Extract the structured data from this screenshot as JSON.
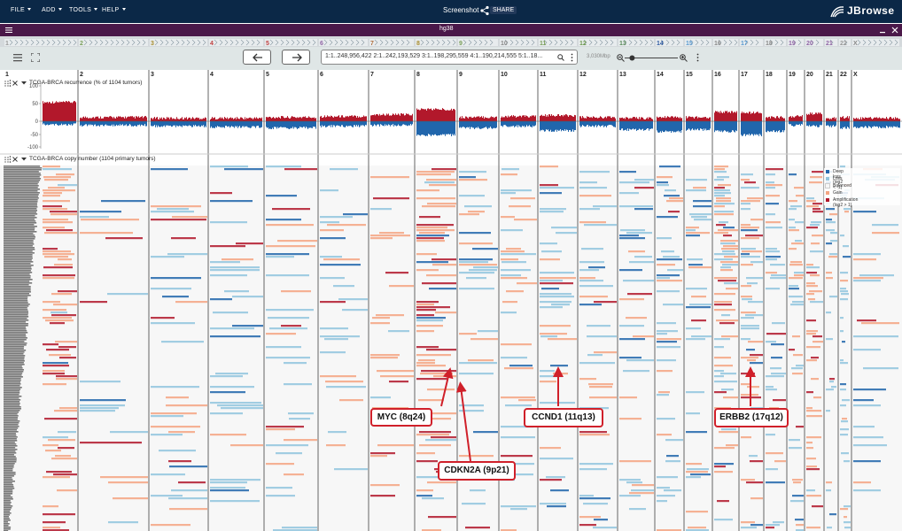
{
  "menu": {
    "items": [
      {
        "label": "FILE"
      },
      {
        "label": "ADD"
      },
      {
        "label": "TOOLS"
      },
      {
        "label": "HELP"
      }
    ]
  },
  "header": {
    "title": "Screenshot",
    "share_label": "SHARE",
    "logo_text": "JBrowse"
  },
  "view": {
    "title": "hg38"
  },
  "location": {
    "text": "1:1..248,956,422 2:1..242,193,529 3:1..198,295,559 4:1..190,214,555 5:1..18...",
    "bp": "3,030Mbp",
    "zoom_fraction": 0.1
  },
  "chromosomes": [
    "1",
    "2",
    "3",
    "4",
    "5",
    "6",
    "7",
    "8",
    "9",
    "10",
    "11",
    "12",
    "13",
    "14",
    "15",
    "16",
    "17",
    "18",
    "19",
    "20",
    "21",
    "22",
    "X"
  ],
  "chrom_colors": [
    "#999999",
    "#7ba05b",
    "#a88d2f",
    "#c04040",
    "#c04040",
    "#9166a6",
    "#b07040",
    "#a88d2f",
    "#7ba05b",
    "#888888",
    "#7ba05b",
    "#6e9a50",
    "#5a8a5a",
    "#2f5aa0",
    "#5a9ad0",
    "#888888",
    "#5a9ad0",
    "#888888",
    "#9166a6",
    "#9166a6",
    "#9166a6",
    "#999999",
    "#888888"
  ],
  "tracks": [
    {
      "label": "TCGA-BRCA recurrence (% of 1104 tumors)",
      "axis": [
        "100",
        "50",
        "0",
        "-50",
        "-100"
      ]
    },
    {
      "label": "TCGA-BRCA copy number (1104 primary tumors)"
    }
  ],
  "legend": [
    {
      "label": "Deep loss (log2 < -1)",
      "color": "#2166ac"
    },
    {
      "label": "Loss",
      "color": "#92c5de"
    },
    {
      "label": "Balanced",
      "color": "#f7f7f7"
    },
    {
      "label": "Gain",
      "color": "#f4a582"
    },
    {
      "label": "Amplification (log2 > 1)",
      "color": "#b2182b"
    }
  ],
  "annotations": [
    {
      "label": "MYC (8q24)"
    },
    {
      "label": "CDKN2A (9p21)"
    },
    {
      "label": "CCND1 (11q13)"
    },
    {
      "label": "ERBB2 (17q12)"
    }
  ],
  "icons": [
    "menu-icon",
    "share-icon",
    "jbrowse-logo",
    "close-icon",
    "drag-handle-icon",
    "chevron-icon",
    "kebab-icon",
    "zoom-out-icon",
    "zoom-in-icon",
    "arrow-left-icon",
    "arrow-right-icon",
    "search-icon"
  ]
}
